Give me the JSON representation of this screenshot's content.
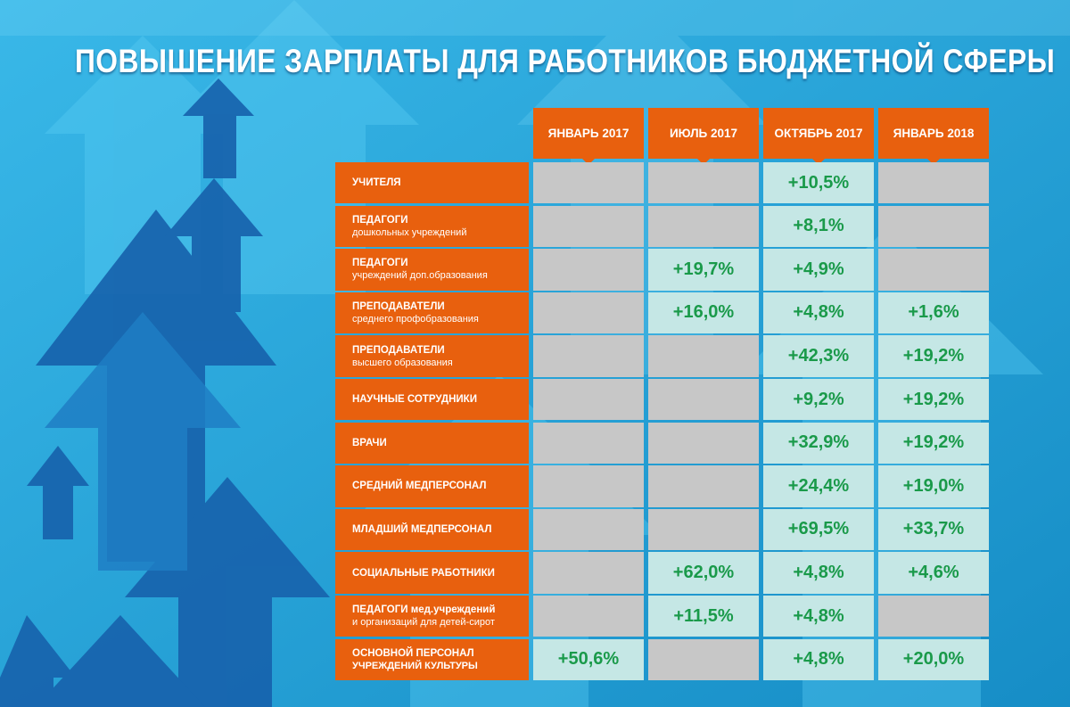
{
  "title": "ПОВЫШЕНИЕ ЗАРПЛАТЫ ДЛЯ РАБОТНИКОВ БЮДЖЕТНОЙ СФЕРЫ",
  "colors": {
    "orange": "#e8600e",
    "filled": "#c5e7e5",
    "empty": "#c7c7c7",
    "value": "#1a9a4a"
  },
  "chart_data": {
    "type": "table",
    "title": "ПОВЫШЕНИЕ ЗАРПЛАТЫ ДЛЯ РАБОТНИКОВ БЮДЖЕТНОЙ СФЕРЫ",
    "columns": [
      "ЯНВАРЬ 2017",
      "ИЮЛЬ 2017",
      "ОКТЯБРЬ 2017",
      "ЯНВАРЬ 2018"
    ],
    "rows": [
      {
        "label": [
          "УЧИТЕЛЯ"
        ],
        "values": [
          "",
          "",
          "+10,5%",
          ""
        ]
      },
      {
        "label": [
          "ПЕДАГОГИ",
          "дошкольных учреждений"
        ],
        "values": [
          "",
          "",
          "+8,1%",
          ""
        ]
      },
      {
        "label": [
          "ПЕДАГОГИ",
          "учреждений доп.образования"
        ],
        "values": [
          "",
          "+19,7%",
          "+4,9%",
          ""
        ]
      },
      {
        "label": [
          "ПРЕПОДАВАТЕЛИ",
          "среднего профобразования"
        ],
        "values": [
          "",
          "+16,0%",
          "+4,8%",
          "+1,6%"
        ]
      },
      {
        "label": [
          "ПРЕПОДАВАТЕЛИ",
          "высшего образования"
        ],
        "values": [
          "",
          "",
          "+42,3%",
          "+19,2%"
        ]
      },
      {
        "label": [
          "НАУЧНЫЕ СОТРУДНИКИ"
        ],
        "values": [
          "",
          "",
          "+9,2%",
          "+19,2%"
        ]
      },
      {
        "label": [
          "ВРАЧИ"
        ],
        "values": [
          "",
          "",
          "+32,9%",
          "+19,2%"
        ]
      },
      {
        "label": [
          "СРЕДНИЙ МЕДПЕРСОНАЛ"
        ],
        "values": [
          "",
          "",
          "+24,4%",
          "+19,0%"
        ]
      },
      {
        "label": [
          "МЛАДШИЙ МЕДПЕРСОНАЛ"
        ],
        "values": [
          "",
          "",
          "+69,5%",
          "+33,7%"
        ]
      },
      {
        "label": [
          "СОЦИАЛЬНЫЕ РАБОТНИКИ"
        ],
        "values": [
          "",
          "+62,0%",
          "+4,8%",
          "+4,6%"
        ]
      },
      {
        "label": [
          "ПЕДАГОГИ мед.учреждений",
          "и организаций для детей-сирот"
        ],
        "values": [
          "",
          "+11,5%",
          "+4,8%",
          ""
        ]
      },
      {
        "label": [
          "ОСНОВНОЙ ПЕРСОНАЛ",
          "УЧРЕЖДЕНИЙ КУЛЬТУРЫ"
        ],
        "values": [
          "+50,6%",
          "",
          "+4,8%",
          "+20,0%"
        ]
      }
    ]
  }
}
